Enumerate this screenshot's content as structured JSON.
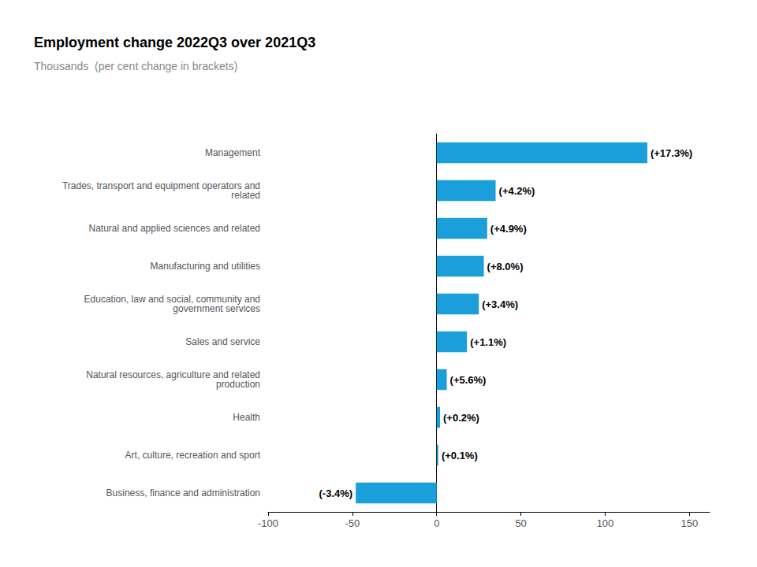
{
  "chart_data": {
    "type": "bar",
    "orientation": "horizontal",
    "title": "Employment change 2022Q3 over 2021Q3",
    "subtitle": "Thousands  (per cent change in brackets)",
    "categories": [
      "Management",
      "Trades, transport and equipment operators and\nrelated",
      "Natural and applied sciences and related",
      "Manufacturing and utilities",
      "Education, law and social, community and\ngovernment services",
      "Sales and service",
      "Natural resources, agriculture and related\nproduction",
      "Health",
      "Art, culture, recreation and sport",
      "Business, finance and administration"
    ],
    "values": [
      125,
      35,
      30,
      28,
      25,
      18,
      6,
      2,
      1,
      -48
    ],
    "annotations": [
      "(+17.3%)",
      "(+4.2%)",
      "(+4.9%)",
      "(+8.0%)",
      "(+3.4%)",
      "(+1.1%)",
      "(+5.6%)",
      "(+0.2%)",
      "(+0.1%)",
      "(-3.4%)"
    ],
    "color": "#1a9fda",
    "xlim": [
      -100,
      162
    ],
    "xticks": [
      -100,
      -50,
      0,
      50,
      100,
      150
    ],
    "grid": false
  }
}
